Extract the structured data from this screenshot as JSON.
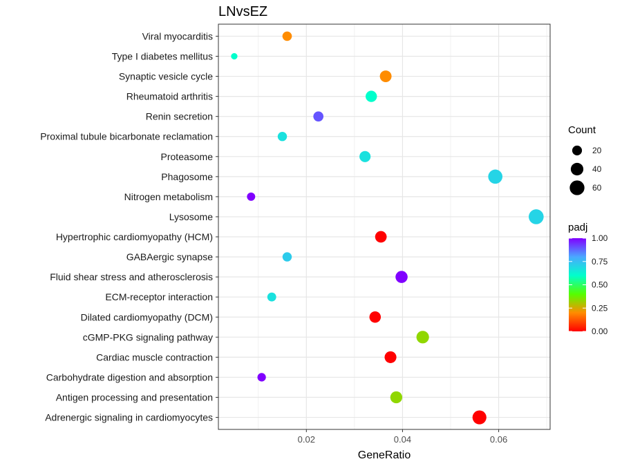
{
  "chart_data": {
    "type": "scatter",
    "title": "LNvsEZ",
    "xlabel": "GeneRatio",
    "ylabel": "",
    "xlim": [
      0.0017,
      0.0707
    ],
    "x_ticks": [
      0.02,
      0.04,
      0.06
    ],
    "x_tick_labels": [
      "0.02",
      "0.04",
      "0.06"
    ],
    "grid": true,
    "points": [
      {
        "term": "Viral myocarditis",
        "gene_ratio": 0.016,
        "count": 18,
        "padj": 0.2
      },
      {
        "term": "Type I diabetes mellitus",
        "gene_ratio": 0.005,
        "count": 5,
        "padj": 0.6
      },
      {
        "term": "Synaptic vesicle cycle",
        "gene_ratio": 0.0365,
        "count": 33,
        "padj": 0.2
      },
      {
        "term": "Rheumatoid arthritis",
        "gene_ratio": 0.0335,
        "count": 30,
        "padj": 0.6
      },
      {
        "term": "Renin secretion",
        "gene_ratio": 0.0225,
        "count": 22,
        "padj": 0.9
      },
      {
        "term": "Proximal tubule bicarbonate reclamation",
        "gene_ratio": 0.015,
        "count": 17,
        "padj": 0.67
      },
      {
        "term": "Proteasome",
        "gene_ratio": 0.0322,
        "count": 29,
        "padj": 0.67
      },
      {
        "term": "Phagosome",
        "gene_ratio": 0.0593,
        "count": 55,
        "padj": 0.7
      },
      {
        "term": "Nitrogen metabolism",
        "gene_ratio": 0.0085,
        "count": 12,
        "padj": 1.0
      },
      {
        "term": "Lysosome",
        "gene_ratio": 0.0678,
        "count": 62,
        "padj": 0.7
      },
      {
        "term": "Hypertrophic cardiomyopathy (HCM)",
        "gene_ratio": 0.0355,
        "count": 32,
        "padj": 0.0
      },
      {
        "term": "GABAergic synapse",
        "gene_ratio": 0.016,
        "count": 17,
        "padj": 0.72
      },
      {
        "term": "Fluid shear stress and atherosclerosis",
        "gene_ratio": 0.0398,
        "count": 36,
        "padj": 1.0
      },
      {
        "term": "ECM-receptor interaction",
        "gene_ratio": 0.0128,
        "count": 15,
        "padj": 0.67
      },
      {
        "term": "Dilated cardiomyopathy (DCM)",
        "gene_ratio": 0.0343,
        "count": 31,
        "padj": 0.0
      },
      {
        "term": "cGMP-PKG signaling pathway",
        "gene_ratio": 0.0442,
        "count": 40,
        "padj": 0.33
      },
      {
        "term": "Cardiac muscle contraction",
        "gene_ratio": 0.0375,
        "count": 34,
        "padj": 0.0
      },
      {
        "term": "Carbohydrate digestion and absorption",
        "gene_ratio": 0.0107,
        "count": 13,
        "padj": 1.0
      },
      {
        "term": "Antigen processing and presentation",
        "gene_ratio": 0.0387,
        "count": 35,
        "padj": 0.33
      },
      {
        "term": "Adrenergic signaling in cardiomyocytes",
        "gene_ratio": 0.056,
        "count": 52,
        "padj": 0.0
      }
    ],
    "legend_size": {
      "title": "Count",
      "values": [
        20,
        40,
        60
      ],
      "labels": [
        "20",
        "40",
        "60"
      ],
      "position": "right"
    },
    "legend_color": {
      "title": "padj",
      "range": [
        0,
        1
      ],
      "ticks": [
        0.0,
        0.25,
        0.5,
        0.75,
        1.0
      ],
      "tick_labels": [
        "0.00",
        "0.25",
        "0.50",
        "0.75",
        "1.00"
      ],
      "gradient": [
        "#ff0000",
        "#ff8c00",
        "#55ff00",
        "#00ffcc",
        "#4aa8ff",
        "#8000ff"
      ],
      "position": "right"
    }
  }
}
